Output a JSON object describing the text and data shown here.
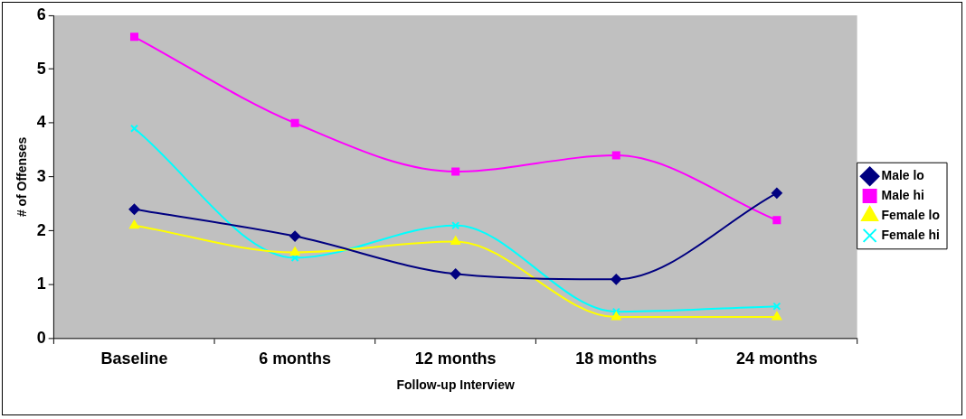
{
  "chart_data": {
    "type": "line",
    "xlabel": "Follow-up Interview",
    "ylabel": "# of Offenses",
    "categories": [
      "Baseline",
      "6 months",
      "12 months",
      "18 months",
      "24 months"
    ],
    "ylim": [
      0,
      6
    ],
    "yticks": [
      0,
      1,
      2,
      3,
      4,
      5,
      6
    ],
    "grid": false,
    "legend": "right",
    "line_style": "solid",
    "series": [
      {
        "name": "Male lo",
        "color": "#000080",
        "marker": "diamond",
        "values": [
          2.4,
          1.9,
          1.2,
          1.1,
          2.7
        ]
      },
      {
        "name": "Male hi",
        "color": "#ff00ff",
        "marker": "square",
        "values": [
          5.6,
          4.0,
          3.1,
          3.4,
          2.2
        ]
      },
      {
        "name": "Female lo",
        "color": "#ffff00",
        "marker": "triangle",
        "values": [
          2.1,
          1.6,
          1.8,
          0.4,
          0.4
        ]
      },
      {
        "name": "Female hi",
        "color": "#00ffff",
        "marker": "cross",
        "values": [
          3.9,
          1.5,
          2.1,
          0.5,
          0.6
        ]
      }
    ]
  }
}
